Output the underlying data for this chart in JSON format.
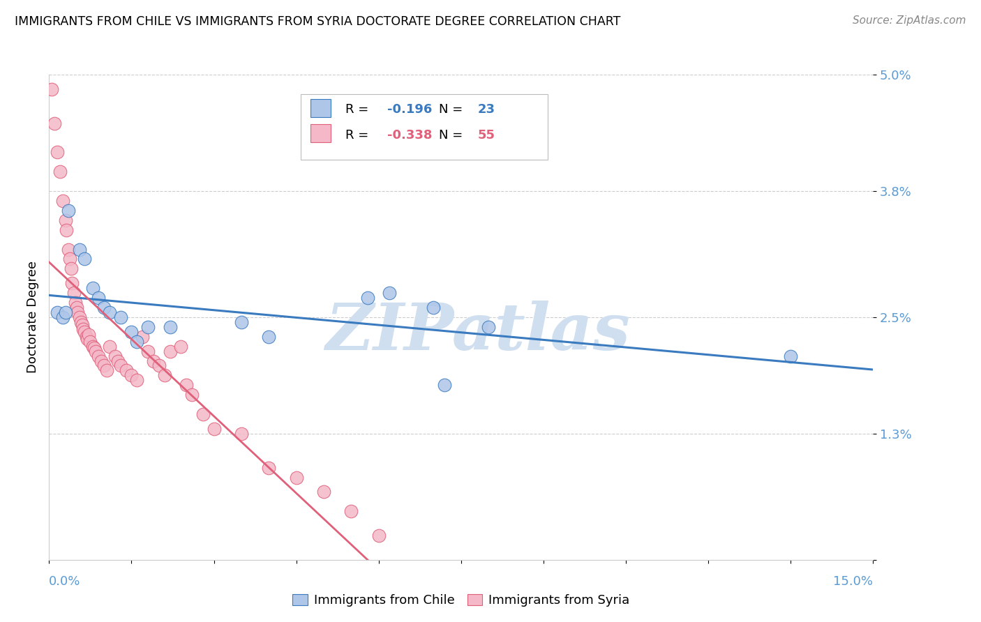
{
  "title": "IMMIGRANTS FROM CHILE VS IMMIGRANTS FROM SYRIA DOCTORATE DEGREE CORRELATION CHART",
  "source": "Source: ZipAtlas.com",
  "ylabel": "Doctorate Degree",
  "xlim": [
    0.0,
    15.0
  ],
  "ylim": [
    0.0,
    5.0
  ],
  "yticks": [
    0.0,
    1.3,
    2.5,
    3.8,
    5.0
  ],
  "ytick_labels": [
    "",
    "1.3%",
    "2.5%",
    "3.8%",
    "5.0%"
  ],
  "grid_color": "#cccccc",
  "background_color": "#ffffff",
  "chile_color": "#aec6e8",
  "chile_edge_color": "#3a7abf",
  "syria_color": "#f4b8c8",
  "syria_edge_color": "#e0607a",
  "chile_R": "-0.196",
  "chile_N": "23",
  "syria_R": "-0.338",
  "syria_N": "55",
  "legend_blue_color": "#3a7abf",
  "legend_pink_color": "#e0607a",
  "right_axis_color": "#5b9bd5",
  "bottom_axis_color": "#aaaaaa",
  "watermark": "ZIPatlas",
  "watermark_color": "#d0dff0",
  "chile_scatter_x": [
    0.15,
    0.25,
    0.35,
    0.55,
    0.65,
    0.8,
    0.9,
    1.0,
    1.1,
    1.3,
    1.5,
    1.6,
    1.8,
    2.2,
    3.5,
    4.0,
    5.8,
    6.2,
    7.0,
    7.2,
    8.0,
    13.5,
    0.3
  ],
  "chile_scatter_y": [
    2.55,
    2.5,
    3.6,
    3.2,
    3.1,
    2.8,
    2.7,
    2.6,
    2.55,
    2.5,
    2.35,
    2.25,
    2.4,
    2.4,
    2.45,
    2.3,
    2.7,
    2.75,
    2.6,
    1.8,
    2.4,
    2.1,
    2.55
  ],
  "syria_scatter_x": [
    0.05,
    0.1,
    0.15,
    0.2,
    0.25,
    0.3,
    0.32,
    0.35,
    0.38,
    0.4,
    0.42,
    0.45,
    0.48,
    0.5,
    0.52,
    0.55,
    0.58,
    0.6,
    0.62,
    0.65,
    0.68,
    0.7,
    0.72,
    0.75,
    0.8,
    0.82,
    0.85,
    0.9,
    0.95,
    1.0,
    1.05,
    1.1,
    1.2,
    1.25,
    1.3,
    1.4,
    1.5,
    1.6,
    1.7,
    1.8,
    1.9,
    2.0,
    2.1,
    2.2,
    2.4,
    2.5,
    2.6,
    2.8,
    3.0,
    3.5,
    4.0,
    4.5,
    5.0,
    5.5,
    6.0
  ],
  "syria_scatter_y": [
    4.85,
    4.5,
    4.2,
    4.0,
    3.7,
    3.5,
    3.4,
    3.2,
    3.1,
    3.0,
    2.85,
    2.75,
    2.65,
    2.6,
    2.55,
    2.5,
    2.45,
    2.42,
    2.38,
    2.35,
    2.3,
    2.28,
    2.32,
    2.25,
    2.2,
    2.18,
    2.15,
    2.1,
    2.05,
    2.0,
    1.95,
    2.2,
    2.1,
    2.05,
    2.0,
    1.95,
    1.9,
    1.85,
    2.3,
    2.15,
    2.05,
    2.0,
    1.9,
    2.15,
    2.2,
    1.8,
    1.7,
    1.5,
    1.35,
    1.3,
    0.95,
    0.85,
    0.7,
    0.5,
    0.25
  ]
}
